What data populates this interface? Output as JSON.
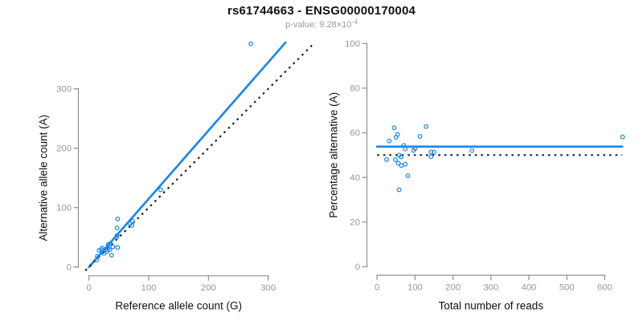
{
  "header": {
    "title": "rs61744663 - ENSG00000170004",
    "subtitle_prefix": "p-value: ",
    "subtitle_mantissa": "9.28",
    "subtitle_times": "×10",
    "subtitle_exponent": "-4"
  },
  "colors": {
    "accent_blue": "#1e87e5",
    "dotted_line": "#1a1a1a",
    "axis_gray": "#8f8f8f",
    "tick_label_gray": "#969696",
    "axis_title_black": "#111111",
    "background": "#ffffff"
  },
  "chart_data": [
    {
      "type": "scatter",
      "name": "left",
      "title": "",
      "xlabel": "Reference allele count (G)",
      "ylabel": "Alternative allele count (A)",
      "xticks": [
        0,
        100,
        200,
        300
      ],
      "yticks": [
        0,
        100,
        200,
        300
      ],
      "xlim": [
        -20,
        390
      ],
      "ylim": [
        -17,
        389
      ],
      "grid": false,
      "legend": "none",
      "points": [
        [
          17,
          28
        ],
        [
          48,
          81
        ],
        [
          22,
          32
        ],
        [
          21,
          29
        ],
        [
          47,
          66
        ],
        [
          271,
          376
        ],
        [
          14,
          18
        ],
        [
          32,
          38
        ],
        [
          35,
          39
        ],
        [
          47,
          53
        ],
        [
          46,
          50
        ],
        [
          120,
          130
        ],
        [
          69,
          73
        ],
        [
          73,
          77
        ],
        [
          29,
          29
        ],
        [
          32,
          31
        ],
        [
          72,
          70
        ],
        [
          13,
          12
        ],
        [
          25,
          23
        ],
        [
          30,
          26
        ],
        [
          35,
          29
        ],
        [
          40,
          34
        ],
        [
          48,
          33
        ],
        [
          38,
          20
        ]
      ],
      "lines": [
        {
          "name": "fit",
          "style": "solid",
          "slope": 1.15,
          "intercept": 0,
          "x1": 0,
          "y1": 0,
          "x2": 329,
          "y2": 378
        },
        {
          "name": "identity",
          "style": "dotted",
          "slope": 1,
          "intercept": 0,
          "x1": -6,
          "y1": -6,
          "x2": 375,
          "y2": 375
        }
      ]
    },
    {
      "type": "scatter",
      "name": "right",
      "title": "",
      "xlabel": "Total number of reads",
      "ylabel": "Percentage alternative (A)",
      "xticks": [
        0,
        100,
        200,
        300,
        400,
        500,
        600
      ],
      "yticks": [
        0,
        20,
        40,
        60,
        80,
        100
      ],
      "xlim": [
        -25,
        675
      ],
      "ylim": [
        0,
        100
      ],
      "grid": false,
      "legend": "none",
      "points": [
        [
          45,
          62.2
        ],
        [
          129,
          62.8
        ],
        [
          54,
          59.3
        ],
        [
          50,
          58.0
        ],
        [
          113,
          58.4
        ],
        [
          647,
          58.1
        ],
        [
          32,
          56.3
        ],
        [
          70,
          54.3
        ],
        [
          74,
          52.7
        ],
        [
          100,
          53.0
        ],
        [
          96,
          52.1
        ],
        [
          250,
          52.0
        ],
        [
          142,
          51.4
        ],
        [
          150,
          51.3
        ],
        [
          58,
          50.0
        ],
        [
          63,
          49.2
        ],
        [
          142,
          49.3
        ],
        [
          25,
          48.0
        ],
        [
          48,
          47.9
        ],
        [
          56,
          46.4
        ],
        [
          64,
          45.3
        ],
        [
          74,
          45.9
        ],
        [
          81,
          40.7
        ],
        [
          58,
          34.5
        ]
      ],
      "lines": [
        {
          "name": "fit",
          "style": "solid",
          "y": 53.8,
          "x1": 0,
          "y1": 53.8,
          "x2": 646,
          "y2": 53.8
        },
        {
          "name": "null-50pct",
          "style": "dotted",
          "y": 50,
          "x1": 0,
          "y1": 50,
          "x2": 646,
          "y2": 50
        }
      ]
    }
  ]
}
